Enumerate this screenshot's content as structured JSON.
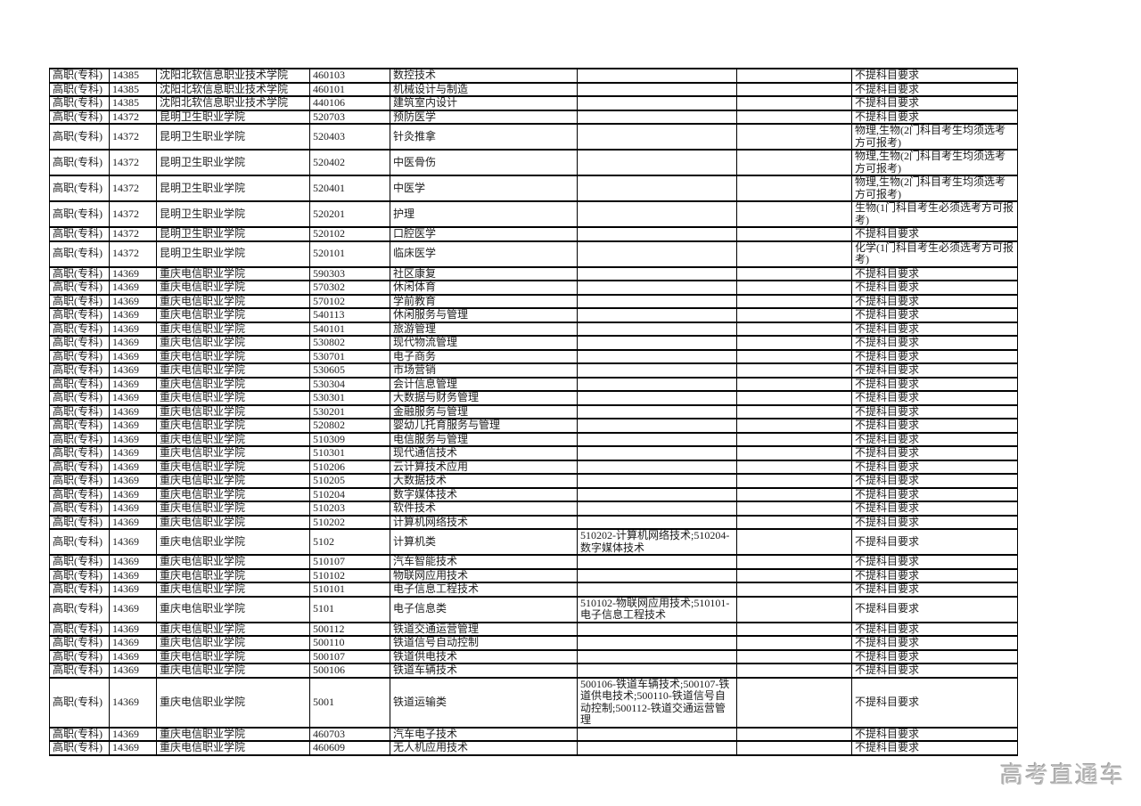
{
  "page": {
    "watermark": "高考直通车"
  },
  "table": {
    "rows": [
      {
        "level": "高职(专科)",
        "school_code": "14385",
        "school_name": "沈阳北软信息职业技术学院",
        "major_code": "460103",
        "major_name": "数控技术",
        "remark": "",
        "requirement": "不提科目要求"
      },
      {
        "level": "高职(专科)",
        "school_code": "14385",
        "school_name": "沈阳北软信息职业技术学院",
        "major_code": "460101",
        "major_name": "机械设计与制造",
        "remark": "",
        "requirement": "不提科目要求"
      },
      {
        "level": "高职(专科)",
        "school_code": "14385",
        "school_name": "沈阳北软信息职业技术学院",
        "major_code": "440106",
        "major_name": "建筑室内设计",
        "remark": "",
        "requirement": "不提科目要求"
      },
      {
        "level": "高职(专科)",
        "school_code": "14372",
        "school_name": "昆明卫生职业学院",
        "major_code": "520703",
        "major_name": "预防医学",
        "remark": "",
        "requirement": "不提科目要求"
      },
      {
        "level": "高职(专科)",
        "school_code": "14372",
        "school_name": "昆明卫生职业学院",
        "major_code": "520403",
        "major_name": "针灸推拿",
        "remark": "",
        "requirement": "物理,生物(2门科目考生均须选考方可报考)"
      },
      {
        "level": "高职(专科)",
        "school_code": "14372",
        "school_name": "昆明卫生职业学院",
        "major_code": "520402",
        "major_name": "中医骨伤",
        "remark": "",
        "requirement": "物理,生物(2门科目考生均须选考方可报考)"
      },
      {
        "level": "高职(专科)",
        "school_code": "14372",
        "school_name": "昆明卫生职业学院",
        "major_code": "520401",
        "major_name": "中医学",
        "remark": "",
        "requirement": "物理,生物(2门科目考生均须选考方可报考)"
      },
      {
        "level": "高职(专科)",
        "school_code": "14372",
        "school_name": "昆明卫生职业学院",
        "major_code": "520201",
        "major_name": "护理",
        "remark": "",
        "requirement": "生物(1门科目考生必须选考方可报考)"
      },
      {
        "level": "高职(专科)",
        "school_code": "14372",
        "school_name": "昆明卫生职业学院",
        "major_code": "520102",
        "major_name": "口腔医学",
        "remark": "",
        "requirement": "不提科目要求"
      },
      {
        "level": "高职(专科)",
        "school_code": "14372",
        "school_name": "昆明卫生职业学院",
        "major_code": "520101",
        "major_name": "临床医学",
        "remark": "",
        "requirement": "化学(1门科目考生必须选考方可报考)"
      },
      {
        "level": "高职(专科)",
        "school_code": "14369",
        "school_name": "重庆电信职业学院",
        "major_code": "590303",
        "major_name": "社区康复",
        "remark": "",
        "requirement": "不提科目要求"
      },
      {
        "level": "高职(专科)",
        "school_code": "14369",
        "school_name": "重庆电信职业学院",
        "major_code": "570302",
        "major_name": "休闲体育",
        "remark": "",
        "requirement": "不提科目要求"
      },
      {
        "level": "高职(专科)",
        "school_code": "14369",
        "school_name": "重庆电信职业学院",
        "major_code": "570102",
        "major_name": "学前教育",
        "remark": "",
        "requirement": "不提科目要求"
      },
      {
        "level": "高职(专科)",
        "school_code": "14369",
        "school_name": "重庆电信职业学院",
        "major_code": "540113",
        "major_name": "休闲服务与管理",
        "remark": "",
        "requirement": "不提科目要求"
      },
      {
        "level": "高职(专科)",
        "school_code": "14369",
        "school_name": "重庆电信职业学院",
        "major_code": "540101",
        "major_name": "旅游管理",
        "remark": "",
        "requirement": "不提科目要求"
      },
      {
        "level": "高职(专科)",
        "school_code": "14369",
        "school_name": "重庆电信职业学院",
        "major_code": "530802",
        "major_name": "现代物流管理",
        "remark": "",
        "requirement": "不提科目要求"
      },
      {
        "level": "高职(专科)",
        "school_code": "14369",
        "school_name": "重庆电信职业学院",
        "major_code": "530701",
        "major_name": "电子商务",
        "remark": "",
        "requirement": "不提科目要求"
      },
      {
        "level": "高职(专科)",
        "school_code": "14369",
        "school_name": "重庆电信职业学院",
        "major_code": "530605",
        "major_name": "市场营销",
        "remark": "",
        "requirement": "不提科目要求"
      },
      {
        "level": "高职(专科)",
        "school_code": "14369",
        "school_name": "重庆电信职业学院",
        "major_code": "530304",
        "major_name": "会计信息管理",
        "remark": "",
        "requirement": "不提科目要求"
      },
      {
        "level": "高职(专科)",
        "school_code": "14369",
        "school_name": "重庆电信职业学院",
        "major_code": "530301",
        "major_name": "大数据与财务管理",
        "remark": "",
        "requirement": "不提科目要求"
      },
      {
        "level": "高职(专科)",
        "school_code": "14369",
        "school_name": "重庆电信职业学院",
        "major_code": "530201",
        "major_name": "金融服务与管理",
        "remark": "",
        "requirement": "不提科目要求"
      },
      {
        "level": "高职(专科)",
        "school_code": "14369",
        "school_name": "重庆电信职业学院",
        "major_code": "520802",
        "major_name": "婴幼儿托育服务与管理",
        "remark": "",
        "requirement": "不提科目要求"
      },
      {
        "level": "高职(专科)",
        "school_code": "14369",
        "school_name": "重庆电信职业学院",
        "major_code": "510309",
        "major_name": "电信服务与管理",
        "remark": "",
        "requirement": "不提科目要求"
      },
      {
        "level": "高职(专科)",
        "school_code": "14369",
        "school_name": "重庆电信职业学院",
        "major_code": "510301",
        "major_name": "现代通信技术",
        "remark": "",
        "requirement": "不提科目要求"
      },
      {
        "level": "高职(专科)",
        "school_code": "14369",
        "school_name": "重庆电信职业学院",
        "major_code": "510206",
        "major_name": "云计算技术应用",
        "remark": "",
        "requirement": "不提科目要求"
      },
      {
        "level": "高职(专科)",
        "school_code": "14369",
        "school_name": "重庆电信职业学院",
        "major_code": "510205",
        "major_name": "大数据技术",
        "remark": "",
        "requirement": "不提科目要求"
      },
      {
        "level": "高职(专科)",
        "school_code": "14369",
        "school_name": "重庆电信职业学院",
        "major_code": "510204",
        "major_name": "数字媒体技术",
        "remark": "",
        "requirement": "不提科目要求"
      },
      {
        "level": "高职(专科)",
        "school_code": "14369",
        "school_name": "重庆电信职业学院",
        "major_code": "510203",
        "major_name": "软件技术",
        "remark": "",
        "requirement": "不提科目要求"
      },
      {
        "level": "高职(专科)",
        "school_code": "14369",
        "school_name": "重庆电信职业学院",
        "major_code": "510202",
        "major_name": "计算机网络技术",
        "remark": "",
        "requirement": "不提科目要求"
      },
      {
        "level": "高职(专科)",
        "school_code": "14369",
        "school_name": "重庆电信职业学院",
        "major_code": "5102",
        "major_name": "计算机类",
        "remark": "510202-计算机网络技术;510204-数字媒体技术",
        "requirement": "不提科目要求"
      },
      {
        "level": "高职(专科)",
        "school_code": "14369",
        "school_name": "重庆电信职业学院",
        "major_code": "510107",
        "major_name": "汽车智能技术",
        "remark": "",
        "requirement": "不提科目要求"
      },
      {
        "level": "高职(专科)",
        "school_code": "14369",
        "school_name": "重庆电信职业学院",
        "major_code": "510102",
        "major_name": "物联网应用技术",
        "remark": "",
        "requirement": "不提科目要求"
      },
      {
        "level": "高职(专科)",
        "school_code": "14369",
        "school_name": "重庆电信职业学院",
        "major_code": "510101",
        "major_name": "电子信息工程技术",
        "remark": "",
        "requirement": "不提科目要求"
      },
      {
        "level": "高职(专科)",
        "school_code": "14369",
        "school_name": "重庆电信职业学院",
        "major_code": "5101",
        "major_name": "电子信息类",
        "remark": "510102-物联网应用技术;510101-电子信息工程技术",
        "requirement": "不提科目要求"
      },
      {
        "level": "高职(专科)",
        "school_code": "14369",
        "school_name": "重庆电信职业学院",
        "major_code": "500112",
        "major_name": "铁道交通运营管理",
        "remark": "",
        "requirement": "不提科目要求"
      },
      {
        "level": "高职(专科)",
        "school_code": "14369",
        "school_name": "重庆电信职业学院",
        "major_code": "500110",
        "major_name": "铁道信号自动控制",
        "remark": "",
        "requirement": "不提科目要求"
      },
      {
        "level": "高职(专科)",
        "school_code": "14369",
        "school_name": "重庆电信职业学院",
        "major_code": "500107",
        "major_name": "铁道供电技术",
        "remark": "",
        "requirement": "不提科目要求"
      },
      {
        "level": "高职(专科)",
        "school_code": "14369",
        "school_name": "重庆电信职业学院",
        "major_code": "500106",
        "major_name": "铁道车辆技术",
        "remark": "",
        "requirement": "不提科目要求"
      },
      {
        "level": "高职(专科)",
        "school_code": "14369",
        "school_name": "重庆电信职业学院",
        "major_code": "5001",
        "major_name": "铁道运输类",
        "remark": "500106-铁道车辆技术;500107-铁道供电技术;500110-铁道信号自动控制;500112-铁道交通运营管理",
        "requirement": "不提科目要求"
      },
      {
        "level": "高职(专科)",
        "school_code": "14369",
        "school_name": "重庆电信职业学院",
        "major_code": "460703",
        "major_name": "汽车电子技术",
        "remark": "",
        "requirement": "不提科目要求"
      },
      {
        "level": "高职(专科)",
        "school_code": "14369",
        "school_name": "重庆电信职业学院",
        "major_code": "460609",
        "major_name": "无人机应用技术",
        "remark": "",
        "requirement": "不提科目要求"
      }
    ]
  }
}
